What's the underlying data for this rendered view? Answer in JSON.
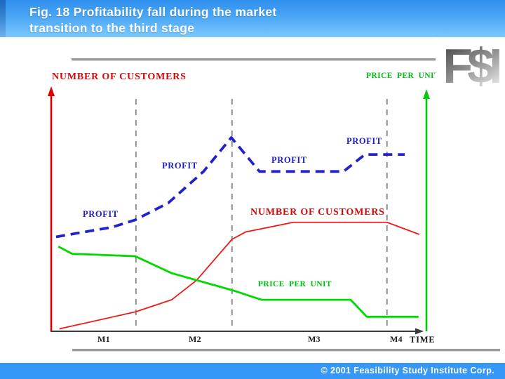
{
  "header": {
    "title_line1": "Fig. 18  Profitability fall during the market",
    "title_line2": "transition to the third stage"
  },
  "logo": {
    "text": "F$I"
  },
  "footer": {
    "copyright": "© 2001 Feasibility Study Institute Corp."
  },
  "labels": {
    "left_axis": "NUMBER OF CUSTOMERS",
    "right_axis": "PRICE PER UNIT",
    "profit": "PROFIT",
    "customers_annotation": "NUMBER OF CUSTOMERS",
    "price_annotation": "PRICE PER UNIT",
    "time_axis": "TIME",
    "milestones": [
      "M1",
      "M2",
      "M3",
      "M4"
    ]
  },
  "colors": {
    "profit_line": "#2222cc",
    "customers_line": "#f21818",
    "price_line": "#00d900",
    "left_axis_red": "#dd0000",
    "right_axis_green": "#00c80a",
    "x_axis_black": "#3a3a3a",
    "grid_gray": "#666666",
    "header_blue_top": "#2f8fee",
    "header_blue_bottom": "#7cc8fd",
    "footer_blue": "#3598f8"
  },
  "chart_data": {
    "type": "line",
    "title": "Fig. 18 Profitability fall during the market transition to the third stage",
    "xlabel": "TIME",
    "ylabel_left": "NUMBER OF CUSTOMERS",
    "ylabel_right": "PRICE PER UNIT",
    "x_stage_ticks": [
      "M1",
      "M2",
      "M3",
      "M4"
    ],
    "xlim": [
      0,
      10
    ],
    "ylim": [
      0,
      100
    ],
    "y_units": "relative level (qualitative, unlabeled axes)",
    "grid": "vertical dashed stage-boundary lines only",
    "legend_position": "inline labels along curves",
    "stage_boundaries_x": [
      2.26,
      4.82,
      8.95
    ],
    "series": [
      {
        "name": "PROFIT",
        "style": "dashed",
        "color": "#2222cc",
        "x": [
          0.13,
          1.63,
          2.24,
          3.12,
          4.06,
          4.8,
          5.55,
          7.79,
          8.36,
          9.42
        ],
        "values": [
          39,
          43,
          46,
          53,
          66,
          80,
          66,
          66,
          73,
          73
        ]
      },
      {
        "name": "NUMBER OF CUSTOMERS",
        "style": "solid",
        "color": "#f21818",
        "x": [
          0.22,
          2.24,
          3.21,
          3.87,
          4.82,
          5.18,
          6.45,
          8.95,
          9.81
        ],
        "values": [
          1,
          8,
          13,
          21,
          38,
          41,
          45,
          45,
          40
        ]
      },
      {
        "name": "PRICE PER UNIT",
        "style": "solid",
        "color": "#00d900",
        "x": [
          0.19,
          0.56,
          2.24,
          3.21,
          4.82,
          5.61,
          7.98,
          8.41,
          9.79
        ],
        "values": [
          35,
          32,
          31,
          24,
          17,
          13,
          13,
          6,
          6
        ]
      }
    ]
  }
}
